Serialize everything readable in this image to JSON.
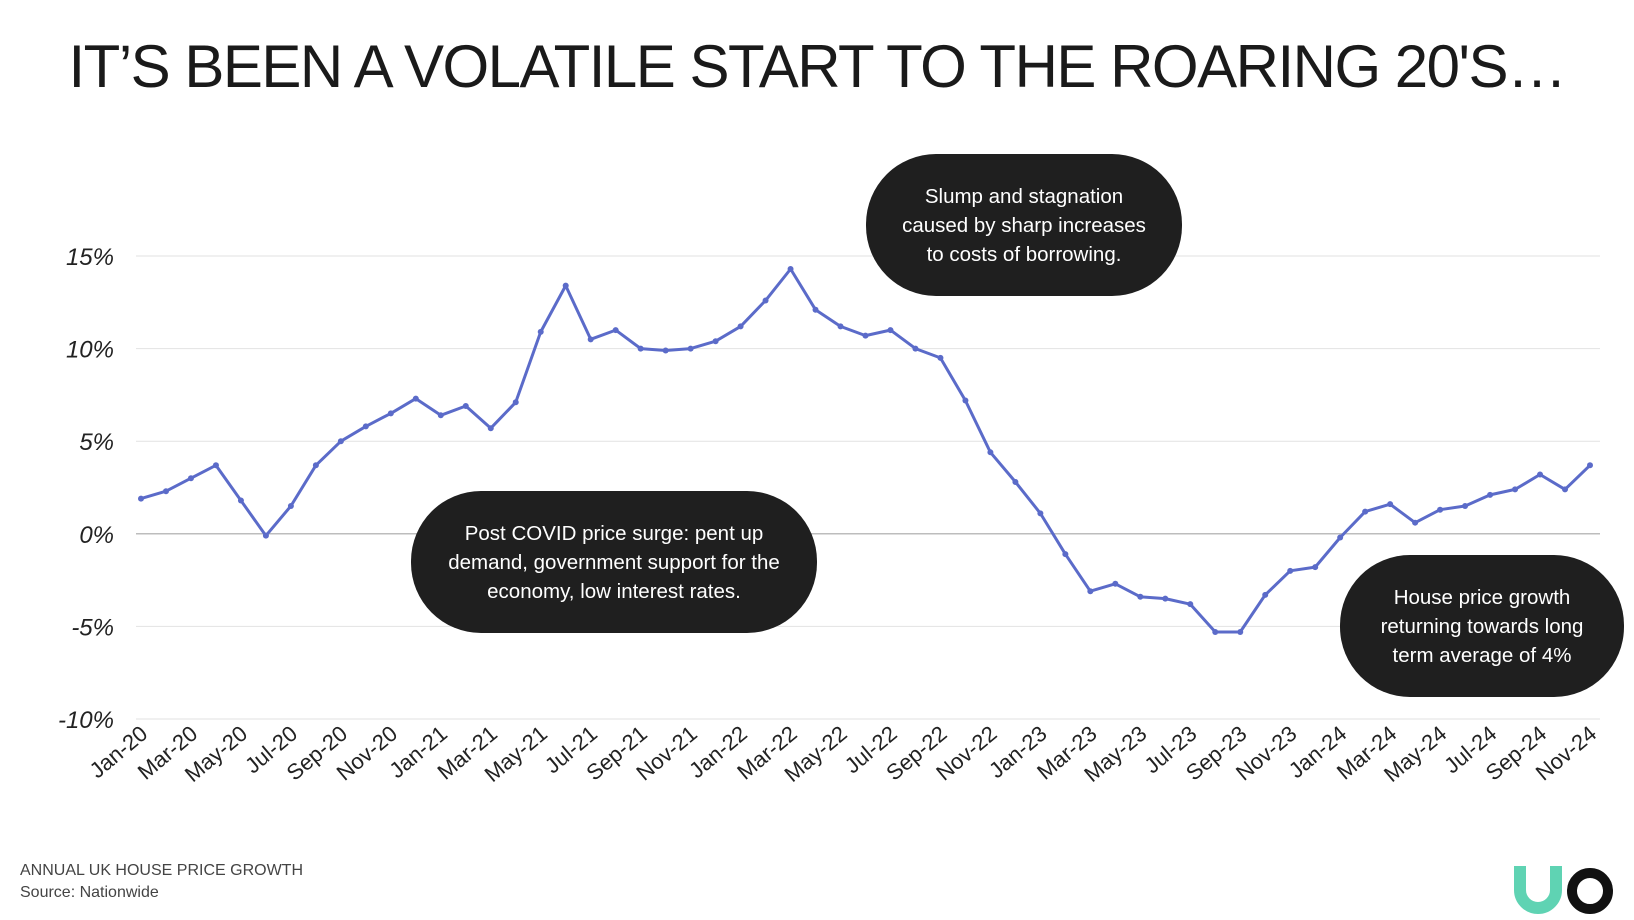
{
  "title": "IT’S BEEN A VOLATILE START TO THE ROARING 20'S…",
  "annotations": [
    {
      "id": "covid-surge",
      "text": "Post COVID price surge: pent up demand, government support for the economy, low interest rates."
    },
    {
      "id": "slump",
      "text": "Slump and stagnation caused by sharp increases to costs of borrowing."
    },
    {
      "id": "returning",
      "text": "House price growth returning towards long term average of 4%"
    }
  ],
  "footer": {
    "series_label": "ANNUAL UK HOUSE PRICE GROWTH",
    "source": "Source: Nationwide"
  },
  "logo": {
    "text": "UO",
    "u_color": "#5fd3b3",
    "o_color": "#111111"
  },
  "chart_data": {
    "type": "line",
    "ylim": [
      -10,
      15
    ],
    "ytick_values": [
      15,
      10,
      5,
      0,
      -5,
      -10
    ],
    "ytick_labels": [
      "15%",
      "10%",
      "5%",
      "0%",
      "-5%",
      "-10%"
    ],
    "grid": true,
    "line_color": "#5b6bc9",
    "x": [
      "Jan-20",
      "Feb-20",
      "Mar-20",
      "Apr-20",
      "May-20",
      "Jun-20",
      "Jul-20",
      "Aug-20",
      "Sep-20",
      "Oct-20",
      "Nov-20",
      "Dec-20",
      "Jan-21",
      "Feb-21",
      "Mar-21",
      "Apr-21",
      "May-21",
      "Jun-21",
      "Jul-21",
      "Aug-21",
      "Sep-21",
      "Oct-21",
      "Nov-21",
      "Dec-21",
      "Jan-22",
      "Feb-22",
      "Mar-22",
      "Apr-22",
      "May-22",
      "Jun-22",
      "Jul-22",
      "Aug-22",
      "Sep-22",
      "Oct-22",
      "Nov-22",
      "Dec-22",
      "Jan-23",
      "Feb-23",
      "Mar-23",
      "Apr-23",
      "May-23",
      "Jun-23",
      "Jul-23",
      "Aug-23",
      "Sep-23",
      "Oct-23",
      "Nov-23",
      "Dec-23",
      "Jan-24",
      "Feb-24",
      "Mar-24",
      "Apr-24",
      "May-24",
      "Jun-24",
      "Jul-24",
      "Aug-24",
      "Sep-24",
      "Oct-24",
      "Nov-24"
    ],
    "xtick_labels": [
      "Jan-20",
      "Mar-20",
      "May-20",
      "Jul-20",
      "Sep-20",
      "Nov-20",
      "Jan-21",
      "Mar-21",
      "May-21",
      "Jul-21",
      "Sep-21",
      "Nov-21",
      "Jan-22",
      "Mar-22",
      "May-22",
      "Jul-22",
      "Sep-22",
      "Nov-22",
      "Jan-23",
      "Mar-23",
      "May-23",
      "Jul-23",
      "Sep-23",
      "Nov-23",
      "Jan-24",
      "Mar-24",
      "May-24",
      "Jul-24",
      "Sep-24",
      "Nov-24"
    ],
    "values": [
      1.9,
      2.3,
      3.0,
      3.7,
      1.8,
      -0.1,
      1.5,
      3.7,
      5.0,
      5.8,
      6.5,
      7.3,
      6.4,
      6.9,
      5.7,
      7.1,
      10.9,
      13.4,
      10.5,
      11.0,
      10.0,
      9.9,
      10.0,
      10.4,
      11.2,
      12.6,
      14.3,
      12.1,
      11.2,
      10.7,
      11.0,
      10.0,
      9.5,
      7.2,
      4.4,
      2.8,
      1.1,
      -1.1,
      -3.1,
      -2.7,
      -3.4,
      -3.5,
      -3.8,
      -5.3,
      -5.3,
      -3.3,
      -2.0,
      -1.8,
      -0.2,
      1.2,
      1.6,
      0.6,
      1.3,
      1.5,
      2.1,
      2.4,
      3.2,
      2.4,
      3.7
    ]
  }
}
